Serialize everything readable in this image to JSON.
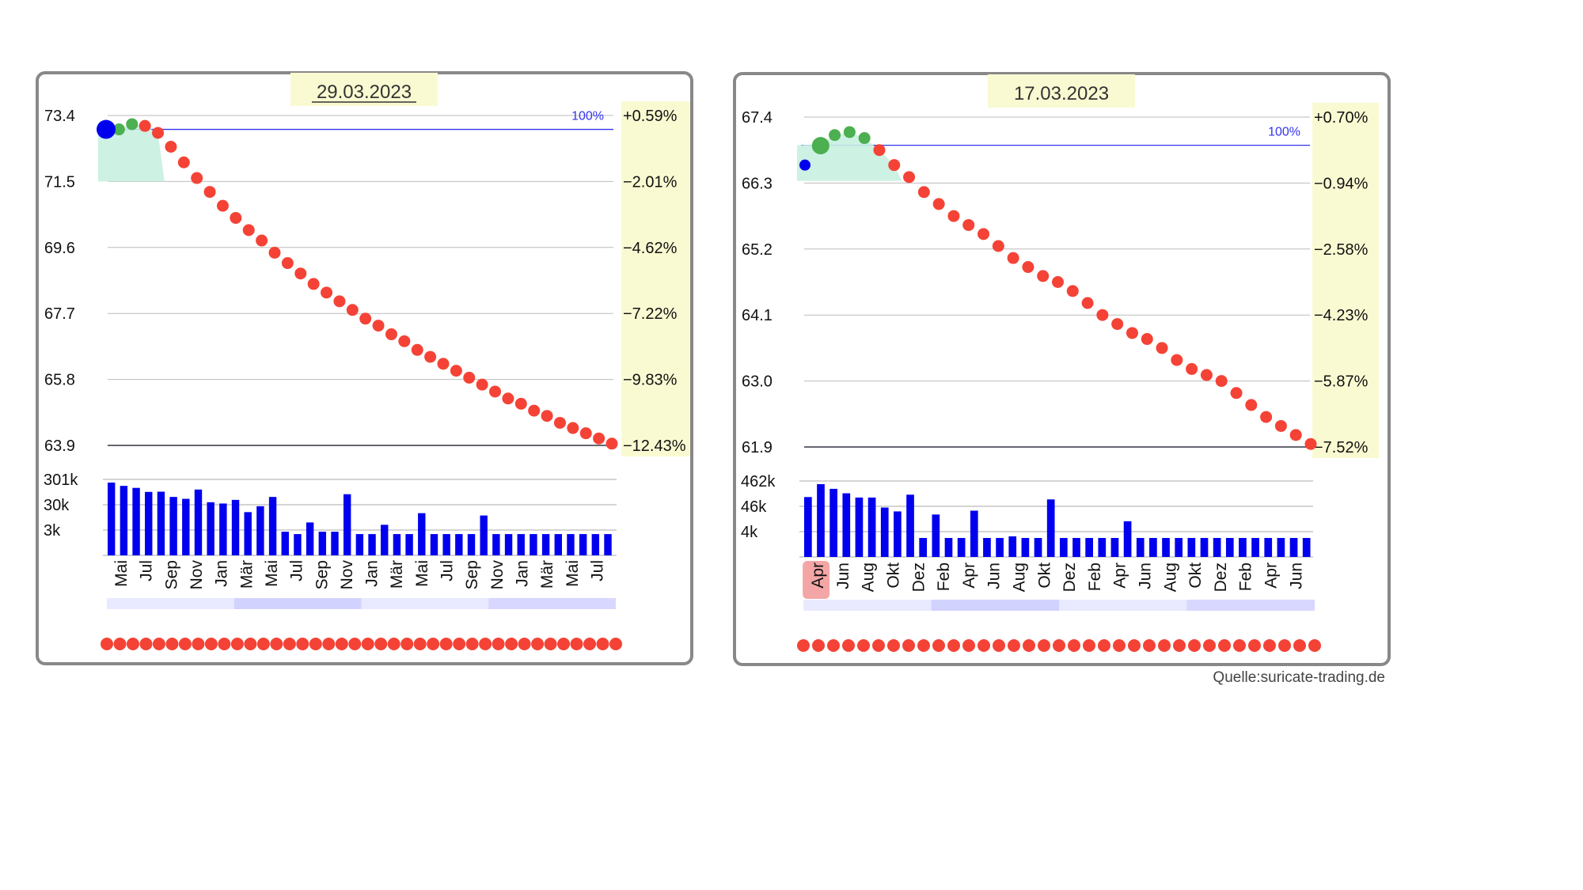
{
  "source": "Quelle:suricate-trading.de",
  "colors": {
    "line_green": "#4caf50",
    "line_red": "#f44336",
    "volume_blue": "#0000ee",
    "reference_blue": "#3333ee",
    "highlight_yellow": "#fafad2",
    "highlight_month": "#f4a6a6"
  },
  "chart_data": [
    {
      "type": "line",
      "title": "29.03.2023",
      "y_ticks": [
        "73.4",
        "71.5",
        "69.6",
        "67.7",
        "65.8",
        "63.9"
      ],
      "ylim": [
        63.9,
        73.4
      ],
      "pct_ticks": [
        "+0.59%",
        "−2.01%",
        "−4.62%",
        "−7.22%",
        "−9.83%",
        "−12.43%"
      ],
      "reference": {
        "label": "100%",
        "value": 73.0
      },
      "start_value": 73.0,
      "green_count": 2,
      "values": [
        73.0,
        73.15,
        73.1,
        72.9,
        72.5,
        72.05,
        71.6,
        71.2,
        70.8,
        70.45,
        70.1,
        69.8,
        69.45,
        69.15,
        68.85,
        68.55,
        68.3,
        68.05,
        67.8,
        67.55,
        67.35,
        67.1,
        66.9,
        66.65,
        66.45,
        66.25,
        66.05,
        65.85,
        65.65,
        65.45,
        65.25,
        65.1,
        64.9,
        64.75,
        64.55,
        64.4,
        64.25,
        64.1,
        63.95
      ],
      "x_tick_labels": [
        "Mai",
        "Jul",
        "Sep",
        "Nov",
        "Jan",
        "Mär",
        "Mai",
        "Jul",
        "Sep",
        "Nov",
        "Jan",
        "Mär",
        "Mai",
        "Jul",
        "Sep",
        "Nov",
        "Jan",
        "Mär",
        "Mai",
        "Jul"
      ],
      "highlighted_tick": null,
      "volume": {
        "ticks": [
          "301k",
          "30k",
          "3k"
        ],
        "values": [
          301000,
          170000,
          120000,
          60000,
          62000,
          25000,
          18000,
          90000,
          10000,
          8000,
          15000,
          1800,
          5000,
          25000,
          60,
          40,
          300,
          60,
          60,
          40000,
          40,
          40,
          200,
          40,
          40,
          1500,
          40,
          40,
          40,
          40,
          1000,
          40,
          40,
          40,
          40,
          40,
          40,
          40,
          40,
          40,
          40
        ]
      }
    },
    {
      "type": "line",
      "title": "17.03.2023",
      "y_ticks": [
        "67.4",
        "66.3",
        "65.2",
        "64.1",
        "63.0",
        "61.9"
      ],
      "ylim": [
        61.9,
        67.4
      ],
      "pct_ticks": [
        "+0.70%",
        "−0.94%",
        "−2.58%",
        "−4.23%",
        "−5.87%",
        "−7.52%"
      ],
      "reference": {
        "label": "100%",
        "value": 66.93
      },
      "start_value": 66.6,
      "green_count": 4,
      "values": [
        66.95,
        67.1,
        67.15,
        67.05,
        66.85,
        66.6,
        66.4,
        66.15,
        65.95,
        65.75,
        65.6,
        65.45,
        65.25,
        65.05,
        64.9,
        64.75,
        64.65,
        64.5,
        64.3,
        64.1,
        63.95,
        63.8,
        63.7,
        63.55,
        63.35,
        63.2,
        63.1,
        63.0,
        62.8,
        62.6,
        62.4,
        62.25,
        62.1,
        61.95
      ],
      "x_tick_labels": [
        "Apr",
        "Jun",
        "Aug",
        "Okt",
        "Dez",
        "Feb",
        "Apr",
        "Jun",
        "Aug",
        "Okt",
        "Dez",
        "Feb",
        "Apr",
        "Jun",
        "Aug",
        "Okt",
        "Dez",
        "Feb",
        "Apr",
        "Jun"
      ],
      "highlighted_tick": 0,
      "volume": {
        "ticks": [
          "462k",
          "46k",
          "4k"
        ],
        "values": [
          46000,
          462000,
          200000,
          90000,
          42000,
          42000,
          7000,
          3500,
          70000,
          30,
          2000,
          30,
          30,
          4000,
          30,
          30,
          40,
          30,
          30,
          30000,
          30,
          30,
          30,
          30,
          30,
          600,
          30,
          30,
          30,
          30,
          30,
          30,
          30,
          30,
          30,
          30,
          30,
          30,
          30,
          30
        ]
      }
    }
  ]
}
